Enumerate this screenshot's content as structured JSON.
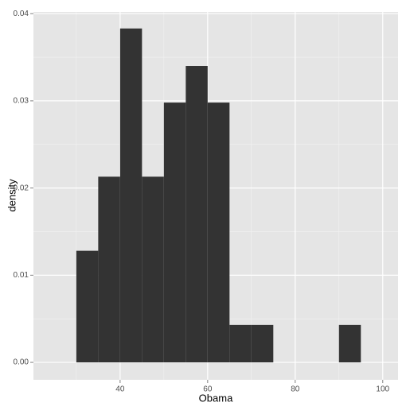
{
  "chart_data": {
    "type": "histogram",
    "xlabel": "Obama",
    "ylabel": "density",
    "bins": [
      30,
      35,
      40,
      45,
      50,
      55,
      60,
      65,
      70,
      75,
      80,
      85,
      90,
      95
    ],
    "values": [
      0.0128,
      0.0213,
      0.0383,
      0.0213,
      0.0298,
      0.034,
      0.0298,
      0.0043,
      0.0043,
      0,
      0,
      0,
      0.0043
    ],
    "color": "#333333",
    "xlim": [
      20.2,
      103.5
    ],
    "ylim": [
      -0.002,
      0.0402
    ],
    "xticks": [
      40,
      60,
      80,
      100
    ],
    "yticks": [
      {
        "value": 0,
        "label": "0.00"
      },
      {
        "value": 0.01,
        "label": "0.01"
      },
      {
        "value": 0.02,
        "label": "0.02"
      },
      {
        "value": 0.03,
        "label": "0.03"
      },
      {
        "value": 0.04,
        "label": "0.04"
      }
    ],
    "grid": true
  }
}
